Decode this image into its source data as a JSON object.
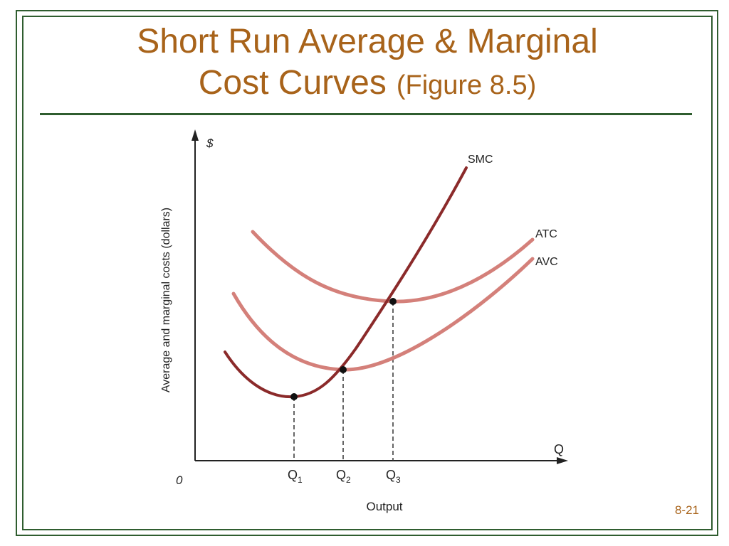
{
  "slide": {
    "title_line1": "Short Run Average & Marginal",
    "title_line2": "Cost Curves",
    "title_fig": "(Figure 8.5)",
    "page_number": "8-21"
  },
  "diagram": {
    "y_axis_symbol": "$",
    "y_axis_label": "Average and marginal costs (dollars)",
    "x_axis_symbol": "Q",
    "x_axis_label": "Output",
    "origin_label": "0",
    "x_ticks": [
      {
        "main": "Q",
        "sub": "1"
      },
      {
        "main": "Q",
        "sub": "2"
      },
      {
        "main": "Q",
        "sub": "3"
      }
    ],
    "curve_labels": {
      "smc": "SMC",
      "atc": "ATC",
      "avc": "AVC"
    },
    "colors": {
      "title": "#a8631a",
      "frame": "#2f5d2f",
      "smc": "#8b2a2a",
      "avg_curves": "#d4807a",
      "axis": "#222222"
    }
  }
}
